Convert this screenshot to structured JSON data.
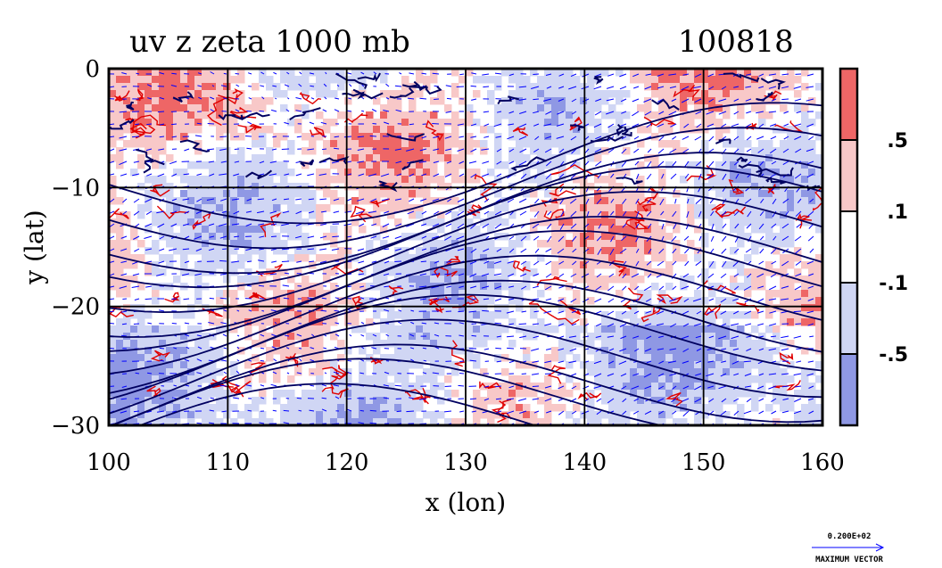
{
  "chart_data": {
    "type": "heatmap",
    "title_left": "uv z zeta 1000 mb",
    "title_right": "100818",
    "xlabel": "x (lon)",
    "ylabel": "y (lat)",
    "xlim": [
      100,
      160
    ],
    "ylim": [
      -30,
      0
    ],
    "x_ticks": [
      100,
      110,
      120,
      130,
      140,
      150,
      160
    ],
    "y_ticks": [
      0,
      -10,
      -20,
      -30
    ],
    "grid": true,
    "colorbar": {
      "placement": "right",
      "levels": [
        ".5",
        ".1",
        "-.1",
        "-.5"
      ],
      "colors": [
        "#ee6666",
        "#f8c8c8",
        "#ffffff",
        "#d0d6f4",
        "#8f98e4"
      ]
    },
    "contour_colors": {
      "positive": "#e00000",
      "geopotential": "#000060",
      "vectors": "#0000ff"
    },
    "reference_vector": {
      "value": "0.200E+02",
      "label": "MAXIMUM VECTOR"
    }
  }
}
